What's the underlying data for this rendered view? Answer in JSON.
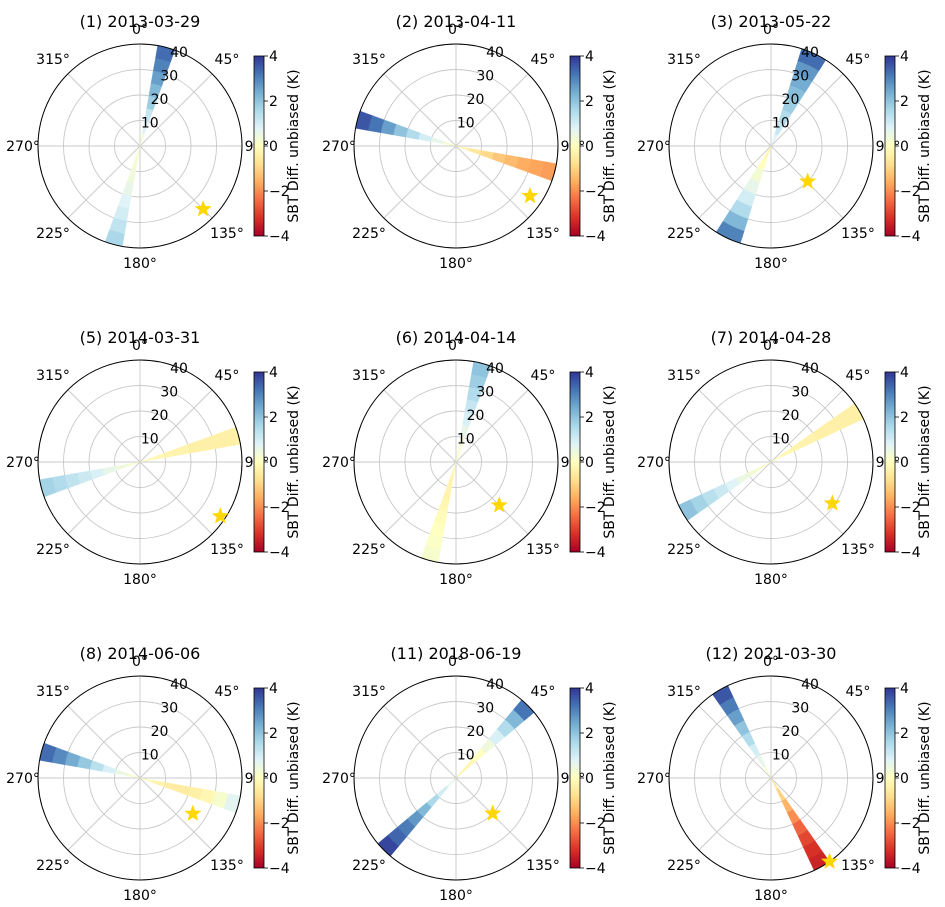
{
  "figure": {
    "colorbar_label": "SBT Diff. unbiased (K)",
    "colorbar_ticks": [
      "4",
      "2",
      "0",
      "−2",
      "−4"
    ],
    "colorbar_range": [
      -4,
      4
    ],
    "colormap": [
      "#a50026",
      "#d73027",
      "#f46d43",
      "#fdae61",
      "#fee090",
      "#ffffbf",
      "#e0f3f8",
      "#abd9e9",
      "#74add1",
      "#4575b4",
      "#313695"
    ],
    "star_color": "#ffd700",
    "radial_ticks": [
      "10",
      "20",
      "30",
      "40"
    ],
    "angle_labels": [
      "0°",
      "45°",
      "90°",
      "135°",
      "180°",
      "225°",
      "270°",
      "315°"
    ]
  },
  "chart_data": [
    {
      "type": "polar",
      "title": "(1) 2013-03-29",
      "radial_range": [
        0,
        40
      ],
      "theta_zero": "north",
      "theta_direction": "clockwise",
      "grid": true,
      "star": {
        "theta": 135,
        "r": 35
      },
      "wedges": [
        {
          "theta": 15,
          "width": 10,
          "values": [
            0.3,
            0.8,
            1.2,
            1.8,
            2.2,
            2.6,
            3.0,
            3.3
          ]
        },
        {
          "theta": 195,
          "width": 10,
          "values": [
            0.2,
            0.3,
            0.4,
            0.6,
            0.8,
            1.0,
            1.3,
            1.6
          ]
        }
      ]
    },
    {
      "type": "polar",
      "title": "(2) 2013-04-11",
      "radial_range": [
        0,
        40
      ],
      "theta_zero": "north",
      "theta_direction": "clockwise",
      "grid": true,
      "star": {
        "theta": 124,
        "r": 35
      },
      "wedges": [
        {
          "theta": 285,
          "width": 10,
          "values": [
            0.2,
            0.6,
            1.0,
            1.5,
            2.0,
            2.6,
            3.2,
            3.6
          ]
        },
        {
          "theta": 105,
          "width": 10,
          "values": [
            -0.3,
            -0.6,
            -0.9,
            -1.2,
            -1.4,
            -1.6,
            -1.7,
            -1.8
          ]
        }
      ]
    },
    {
      "type": "polar",
      "title": "(3) 2013-05-22",
      "radial_range": [
        0,
        40
      ],
      "theta_zero": "north",
      "theta_direction": "clockwise",
      "grid": true,
      "star": {
        "theta": 134,
        "r": 20
      },
      "wedges": [
        {
          "theta": 25,
          "width": 15,
          "values": [
            0.8,
            1.2,
            1.5,
            1.8,
            2.1,
            2.4,
            2.7,
            3.3
          ]
        },
        {
          "theta": 205,
          "width": 15,
          "values": [
            -0.2,
            0.0,
            0.3,
            0.6,
            1.0,
            1.5,
            2.2,
            3.0
          ]
        }
      ]
    },
    {
      "type": "polar",
      "title": "(5) 2014-03-31",
      "radial_range": [
        0,
        40
      ],
      "theta_zero": "north",
      "theta_direction": "clockwise",
      "grid": true,
      "star": {
        "theta": 124,
        "r": 38
      },
      "wedges": [
        {
          "theta": 75,
          "width": 10,
          "values": [
            -0.1,
            -0.2,
            -0.3,
            -0.3,
            -0.4,
            -0.4,
            -0.4,
            -0.4
          ]
        },
        {
          "theta": 255,
          "width": 10,
          "values": [
            0.2,
            0.4,
            0.6,
            0.9,
            1.1,
            1.3,
            1.5,
            1.7
          ]
        }
      ]
    },
    {
      "type": "polar",
      "title": "(6) 2014-04-14",
      "radial_range": [
        0,
        40
      ],
      "theta_zero": "north",
      "theta_direction": "clockwise",
      "grid": true,
      "star": {
        "theta": 135,
        "r": 24
      },
      "wedges": [
        {
          "theta": 15,
          "width": 10,
          "values": [
            0.1,
            0.3,
            0.6,
            0.9,
            1.2,
            1.5,
            1.8,
            2.0
          ]
        },
        {
          "theta": 195,
          "width": 10,
          "values": [
            -0.2,
            -0.3,
            -0.3,
            -0.2,
            -0.1,
            0.0,
            0.1,
            0.2
          ]
        }
      ]
    },
    {
      "type": "polar",
      "title": "(7) 2014-04-28",
      "radial_range": [
        0,
        40
      ],
      "theta_zero": "north",
      "theta_direction": "clockwise",
      "grid": true,
      "star": {
        "theta": 124,
        "r": 29
      },
      "wedges": [
        {
          "theta": 60,
          "width": 10,
          "values": [
            -0.1,
            -0.2,
            -0.3,
            -0.3,
            -0.4,
            -0.4,
            -0.4,
            -0.4
          ]
        },
        {
          "theta": 240,
          "width": 10,
          "values": [
            0.1,
            0.3,
            0.5,
            0.8,
            1.1,
            1.4,
            1.7,
            2.0
          ]
        }
      ]
    },
    {
      "type": "polar",
      "title": "(8) 2014-06-06",
      "radial_range": [
        0,
        40
      ],
      "theta_zero": "north",
      "theta_direction": "clockwise",
      "grid": true,
      "star": {
        "theta": 124,
        "r": 25
      },
      "wedges": [
        {
          "theta": 285,
          "width": 10,
          "values": [
            0.2,
            0.5,
            0.9,
            1.4,
            1.9,
            2.4,
            2.9,
            3.3
          ]
        },
        {
          "theta": 105,
          "width": 10,
          "values": [
            -0.1,
            -0.3,
            -0.5,
            -0.5,
            -0.4,
            -0.2,
            0.2,
            0.7
          ]
        }
      ]
    },
    {
      "type": "polar",
      "title": "(11) 2018-06-19",
      "radial_range": [
        0,
        40
      ],
      "theta_zero": "north",
      "theta_direction": "clockwise",
      "grid": true,
      "star": {
        "theta": 134,
        "r": 20
      },
      "wedges": [
        {
          "theta": 45,
          "width": 10,
          "values": [
            -0.3,
            -0.2,
            0.0,
            0.4,
            0.9,
            1.5,
            2.2,
            3.2
          ]
        },
        {
          "theta": 225,
          "width": 10,
          "values": [
            0.6,
            1.0,
            1.6,
            2.2,
            2.7,
            3.1,
            3.4,
            3.8
          ]
        }
      ]
    },
    {
      "type": "polar",
      "title": "(12) 2021-03-30",
      "radial_range": [
        0,
        40
      ],
      "theta_zero": "north",
      "theta_direction": "clockwise",
      "grid": true,
      "star": {
        "theta": 145,
        "r": 40
      },
      "wedges": [
        {
          "theta": 330,
          "width": 10,
          "values": [
            0.2,
            0.6,
            1.0,
            1.5,
            2.0,
            2.6,
            3.1,
            3.6
          ]
        },
        {
          "theta": 150,
          "width": 10,
          "values": [
            -0.6,
            -1.0,
            -1.5,
            -2.0,
            -2.5,
            -2.9,
            -3.2,
            -3.4
          ]
        }
      ]
    }
  ]
}
